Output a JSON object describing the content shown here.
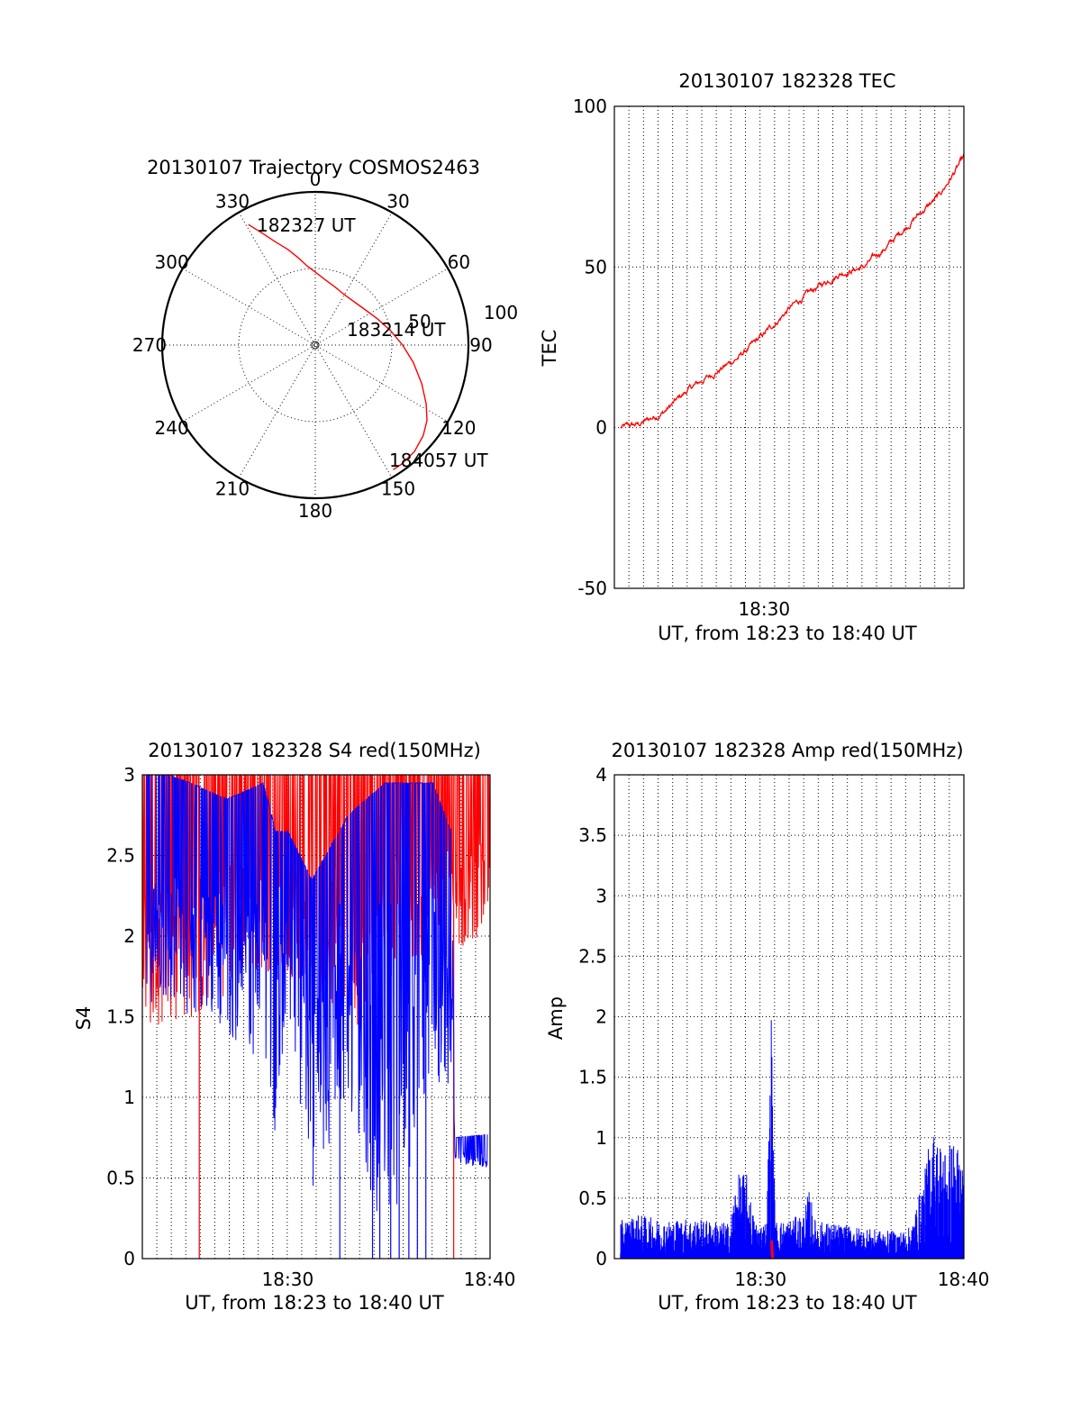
{
  "chart_data": [
    {
      "id": "trajectory",
      "type": "polar",
      "title": "20130107 Trajectory COSMOS2463",
      "angle_labels": [
        "0",
        "30",
        "60",
        "90",
        "120",
        "150",
        "180",
        "210",
        "240",
        "270",
        "300",
        "330"
      ],
      "radial_labels": [
        "50",
        "100"
      ],
      "start_label": "182327 UT",
      "mid_label": "183214 UT",
      "end_label": "184057 UT",
      "series": [
        {
          "color": "#ff0000",
          "points": [
            [
              331,
              90
            ],
            [
              335,
              80
            ],
            [
              339,
              72
            ],
            [
              344,
              65
            ],
            [
              349,
              58
            ],
            [
              354,
              52
            ],
            [
              1,
              47
            ],
            [
              9,
              43
            ],
            [
              19,
              40
            ],
            [
              30,
              38
            ],
            [
              42,
              38
            ],
            [
              55,
              40
            ],
            [
              67,
              44
            ],
            [
              79,
              50
            ],
            [
              90,
              57
            ],
            [
              100,
              65
            ],
            [
              110,
              74
            ],
            [
              118,
              82
            ],
            [
              124,
              88
            ],
            [
              130,
              92
            ],
            [
              137,
              95
            ],
            [
              144,
              96
            ],
            [
              148,
              96
            ]
          ]
        }
      ]
    },
    {
      "id": "tec",
      "type": "line",
      "title": "20130107 182328 TEC",
      "ylabel": "TEC",
      "xlabel": "UT, from 18:23 to 18:40 UT",
      "xlim": [
        18.38,
        18.66
      ],
      "ylim": [
        -50,
        100
      ],
      "yticks": [
        "-50",
        "0",
        "50",
        "100"
      ],
      "xticks": [
        {
          "at": 18.5,
          "label": "18:30"
        }
      ],
      "color": "#ff0000",
      "x": [
        18.385,
        18.4,
        18.42,
        18.44,
        18.46,
        18.48,
        18.5,
        18.52,
        18.54,
        18.56,
        18.58,
        18.6,
        18.62,
        18.64,
        18.66
      ],
      "y": [
        0,
        1,
        5,
        12,
        17,
        22,
        29,
        37,
        43,
        48,
        50,
        57,
        65,
        72,
        84
      ]
    },
    {
      "id": "s4",
      "type": "line",
      "title": "20130107 182328 S4 red(150MHz)",
      "ylabel": "S4",
      "xlabel": "UT, from 18:23 to 18:40 UT",
      "xlim": [
        18.38,
        18.667
      ],
      "ylim": [
        0,
        3
      ],
      "yticks": [
        "0",
        "0.5",
        "1",
        "1.5",
        "2",
        "2.5",
        "3"
      ],
      "xticks": [
        {
          "at": 18.5,
          "label": "18:30"
        },
        {
          "at": 18.6667,
          "label": "18:40"
        }
      ],
      "series": [
        {
          "color": "#ff0000",
          "envelope": [
            [
              18.38,
              1.4,
              3
            ],
            [
              18.43,
              1.5,
              3
            ],
            [
              18.47,
              1.8,
              3
            ],
            [
              18.52,
              1.7,
              3
            ],
            [
              18.56,
              1.4,
              3
            ],
            [
              18.6,
              1.8,
              3
            ],
            [
              18.667,
              2.0,
              3
            ]
          ],
          "spikes_to_zero": [
            18.427,
            18.637
          ]
        },
        {
          "color": "#0000ff",
          "envelope": [
            [
              18.383,
              1.6,
              3
            ],
            [
              18.42,
              1.5,
              2.9
            ],
            [
              18.45,
              1.4,
              2.8
            ],
            [
              18.48,
              1.2,
              2.9
            ],
            [
              18.49,
              0.75,
              2.6
            ],
            [
              18.5,
              1.5,
              2.6
            ],
            [
              18.52,
              0.4,
              2.3
            ],
            [
              18.55,
              1.0,
              2.7
            ],
            [
              18.58,
              0,
              2.9
            ],
            [
              18.62,
              1.1,
              2.9
            ],
            [
              18.635,
              1.0,
              2.6
            ],
            [
              18.638,
              0.6,
              0.7
            ],
            [
              18.665,
              0.55,
              0.72
            ]
          ],
          "spikes_to_zero": [
            18.543,
            18.57,
            18.576,
            18.585,
            18.592,
            18.6,
            18.607,
            18.614
          ]
        }
      ]
    },
    {
      "id": "amp",
      "type": "line",
      "title": "20130107 182328 Amp red(150MHz)",
      "ylabel": "Amp",
      "xlabel": "UT, from 18:23 to 18:40 UT",
      "xlim": [
        18.38,
        18.667
      ],
      "ylim": [
        0,
        4
      ],
      "yticks": [
        "0",
        "0.5",
        "1",
        "1.5",
        "2",
        "2.5",
        "3",
        "3.5",
        "4"
      ],
      "xticks": [
        {
          "at": 18.5,
          "label": "18:30"
        },
        {
          "at": 18.6667,
          "label": "18:40"
        }
      ],
      "series": [
        {
          "color": "#0000ff",
          "x": [
            18.385,
            18.4,
            18.42,
            18.44,
            18.46,
            18.475,
            18.48,
            18.488,
            18.495,
            18.5,
            18.505,
            18.509,
            18.512,
            18.52,
            18.535,
            18.54,
            18.545,
            18.56,
            18.58,
            18.6,
            18.62,
            18.625,
            18.635,
            18.64,
            18.65,
            18.66,
            18.667
          ],
          "y": [
            0.3,
            0.35,
            0.3,
            0.32,
            0.3,
            0.28,
            0.65,
            0.7,
            0.3,
            0.28,
            0.3,
            2.05,
            0.3,
            0.3,
            0.35,
            0.55,
            0.3,
            0.28,
            0.25,
            0.22,
            0.22,
            0.3,
            0.7,
            1.05,
            0.9,
            0.95,
            0.8
          ]
        },
        {
          "color": "#ff0000",
          "x": [
            18.509,
            18.51
          ],
          "y": [
            0.15,
            0.0
          ]
        }
      ]
    }
  ]
}
